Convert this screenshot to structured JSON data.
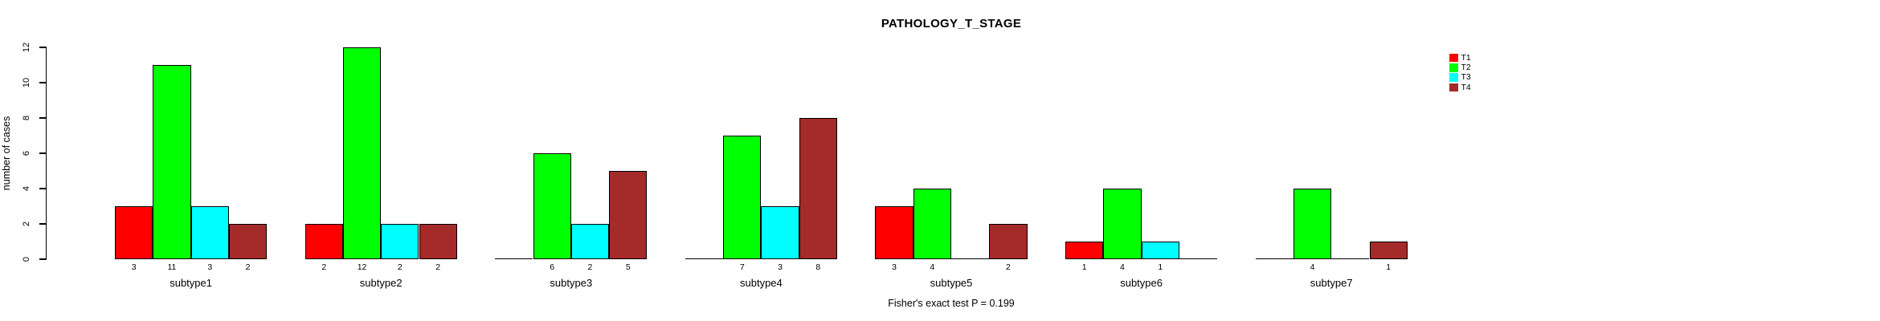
{
  "title": "PATHOLOGY_T_STAGE",
  "footnote": "Fisher's exact test P = 0.199",
  "ylabel": "number of cases",
  "colors": {
    "background": "#ffffff",
    "axis": "#000000",
    "T1": "#FF0000",
    "T2": "#00FF00",
    "T3": "#00FFFF",
    "T4": "#A52A2A"
  },
  "legend": {
    "items": [
      {
        "label": "T1",
        "color": "#FF0000"
      },
      {
        "label": "T2",
        "color": "#00FF00"
      },
      {
        "label": "T3",
        "color": "#00FFFF"
      },
      {
        "label": "T4",
        "color": "#A52A2A"
      }
    ]
  },
  "chart_data": {
    "type": "bar",
    "title": "PATHOLOGY_T_STAGE",
    "subtitle": "Fisher's exact test P = 0.199",
    "xlabel": "",
    "ylabel": "number of cases",
    "ylim": [
      0,
      12
    ],
    "yticks": [
      0,
      2,
      4,
      6,
      8,
      10,
      12
    ],
    "grid": false,
    "legend_position": "top-right",
    "bar_value_labels": "shown under each nonzero bar",
    "categories": [
      "subtype1",
      "subtype2",
      "subtype3",
      "subtype4",
      "subtype5",
      "subtype6",
      "subtype7"
    ],
    "series": [
      {
        "name": "T1",
        "color": "#FF0000",
        "values": [
          3,
          2,
          0,
          0,
          3,
          1,
          0
        ]
      },
      {
        "name": "T2",
        "color": "#00FF00",
        "values": [
          11,
          12,
          6,
          7,
          4,
          4,
          4
        ]
      },
      {
        "name": "T3",
        "color": "#00FFFF",
        "values": [
          3,
          2,
          2,
          3,
          0,
          1,
          0
        ]
      },
      {
        "name": "T4",
        "color": "#A52A2A",
        "values": [
          2,
          2,
          5,
          8,
          2,
          0,
          1
        ]
      }
    ]
  }
}
